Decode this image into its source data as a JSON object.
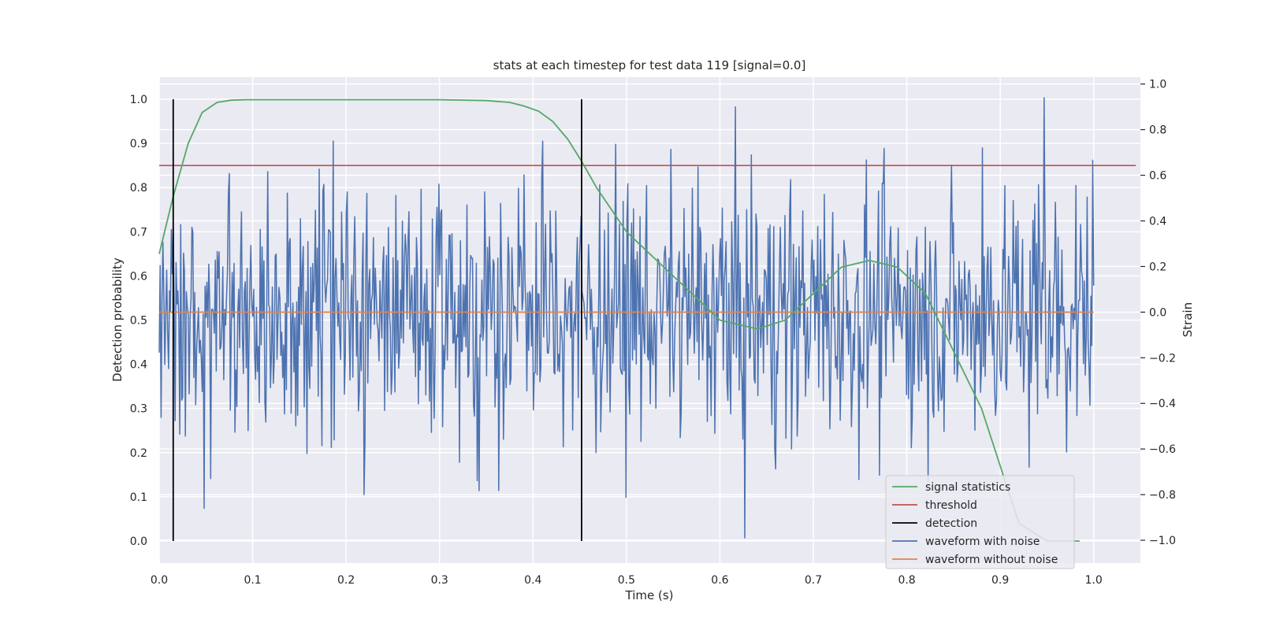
{
  "chart_data": {
    "type": "line",
    "title": "stats at each timestep for test data 119 [signal=0.0]",
    "xlabel": "Time (s)",
    "ylabel": "Detection probability",
    "y2label": "Strain",
    "xlim": [
      0.0,
      1.05
    ],
    "ylim": [
      -0.05,
      1.05
    ],
    "y2lim": [
      -1.1,
      1.03
    ],
    "x_ticks": [
      "0.0",
      "0.1",
      "0.2",
      "0.3",
      "0.4",
      "0.5",
      "0.6",
      "0.7",
      "0.8",
      "0.9",
      "1.0"
    ],
    "y_ticks": [
      "0.0",
      "0.1",
      "0.2",
      "0.3",
      "0.4",
      "0.5",
      "0.6",
      "0.7",
      "0.8",
      "0.9",
      "1.0"
    ],
    "y2_ticks": [
      "−1.0",
      "−0.8",
      "−0.6",
      "−0.4",
      "−0.2",
      "0.0",
      "0.2",
      "0.4",
      "0.6",
      "0.8",
      "1.0"
    ],
    "grid": true,
    "legend_position": "lower-right",
    "legend": [
      {
        "label": "signal statistics",
        "color": "#55a868"
      },
      {
        "label": "threshold",
        "color": "#c44e52"
      },
      {
        "label": "detection",
        "color": "#000000"
      },
      {
        "label": "waveform with noise",
        "color": "#4c72b0"
      },
      {
        "label": "waveform without noise",
        "color": "#dd8452"
      }
    ],
    "signal_statistics": {
      "color": "#55a868",
      "x": [
        0.0,
        0.015,
        0.031,
        0.046,
        0.062,
        0.077,
        0.093,
        0.2,
        0.3,
        0.35,
        0.375,
        0.39,
        0.406,
        0.421,
        0.437,
        0.452,
        0.468,
        0.484,
        0.5,
        0.53,
        0.56,
        0.6,
        0.64,
        0.67,
        0.7,
        0.73,
        0.76,
        0.79,
        0.82,
        0.85,
        0.88,
        0.9,
        0.92,
        0.95,
        0.985
      ],
      "y": [
        0.65,
        0.78,
        0.9,
        0.97,
        0.993,
        0.998,
        0.999,
        0.999,
        0.999,
        0.997,
        0.993,
        0.985,
        0.973,
        0.95,
        0.91,
        0.86,
        0.8,
        0.75,
        0.7,
        0.64,
        0.58,
        0.5,
        0.48,
        0.5,
        0.56,
        0.62,
        0.635,
        0.62,
        0.56,
        0.43,
        0.3,
        0.17,
        0.04,
        0.0,
        0.0
      ]
    },
    "threshold": {
      "value": 0.85,
      "x_range": [
        0.0,
        1.045
      ],
      "color": "#c44e52"
    },
    "detections": [
      0.015,
      0.452
    ],
    "waveform_with_noise": {
      "color": "#4c72b0",
      "axis": "right",
      "x_range": [
        0.0,
        1.0
      ],
      "points": 1000,
      "noise_std": 0.28,
      "extremes": [
        {
          "x": 0.947,
          "y": 0.94
        },
        {
          "x": 0.627,
          "y": -0.99
        },
        {
          "x": 0.048,
          "y": -0.86
        },
        {
          "x": 0.186,
          "y": 0.75
        },
        {
          "x": 0.219,
          "y": -0.8
        },
        {
          "x": 0.41,
          "y": 0.75
        },
        {
          "x": 0.176,
          "y": 0.56
        },
        {
          "x": 0.881,
          "y": 0.72
        }
      ]
    },
    "waveform_without_noise": {
      "value": 0.0,
      "x_range": [
        0.0,
        1.0
      ],
      "color": "#dd8452",
      "axis": "right"
    }
  }
}
